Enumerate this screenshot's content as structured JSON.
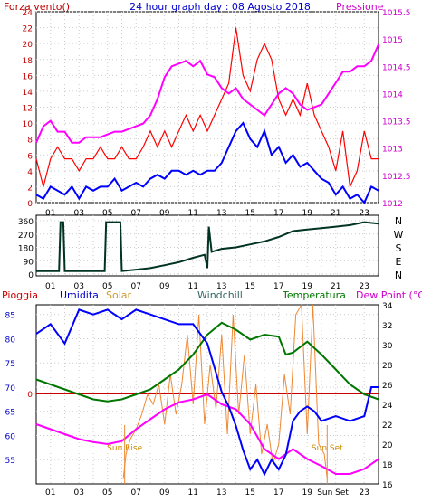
{
  "chart_data": [
    {
      "type": "line",
      "title": "24 hour graph day : 08 Agosto 2018",
      "left_axis_title": "Forza vento()",
      "right_axis_title": "Pressione",
      "left_ylim": [
        0,
        24
      ],
      "left_ticks": [
        "0",
        "2",
        "4",
        "6",
        "8",
        "10",
        "12",
        "14",
        "16",
        "18",
        "20",
        "22",
        "24"
      ],
      "right_ylim": [
        1012,
        1015.5
      ],
      "right_ticks": [
        "1012",
        "1012.5",
        "1013",
        "1013.5",
        "1014",
        "1014.5",
        "1015",
        "1015.5"
      ],
      "x_ticks": [
        "01",
        "03",
        "05",
        "07",
        "09",
        "11",
        "13",
        "15",
        "17",
        "19",
        "21",
        "23"
      ],
      "grid": true,
      "colors": {
        "gust": "#ff0000",
        "wind": "#0000ff",
        "pressure": "#ff00ff",
        "left_text": "#c00000",
        "right_text": "#cc00cc",
        "title": "#0000cc"
      },
      "series": [
        {
          "key": "gust",
          "axis": "left",
          "x": [
            0,
            0.5,
            1,
            1.5,
            2,
            2.5,
            3,
            3.5,
            4,
            4.5,
            5,
            5.5,
            6,
            6.5,
            7,
            7.5,
            8,
            8.5,
            9,
            9.5,
            10,
            10.5,
            11,
            11.5,
            12,
            12.5,
            13,
            13.5,
            14,
            14.5,
            15,
            15.5,
            16,
            16.5,
            17,
            17.5,
            18,
            18.5,
            19,
            19.5,
            20,
            20.5,
            21,
            21.5,
            22,
            22.5,
            23,
            23.5,
            24
          ],
          "values": [
            5.5,
            2,
            5.5,
            7,
            5.5,
            5.5,
            4,
            5.5,
            5.5,
            7,
            5.5,
            5.5,
            7,
            5.5,
            5.5,
            7,
            9,
            7,
            9,
            7,
            9,
            11,
            9,
            11,
            9,
            11,
            13,
            15,
            22,
            16,
            14,
            18,
            20,
            18,
            13,
            11,
            13,
            11,
            15,
            11,
            9,
            7,
            4,
            9,
            2,
            4,
            9,
            5.5,
            5.5
          ]
        },
        {
          "key": "wind",
          "axis": "left",
          "x": [
            0,
            0.5,
            1,
            1.5,
            2,
            2.5,
            3,
            3.5,
            4,
            4.5,
            5,
            5.5,
            6,
            6.5,
            7,
            7.5,
            8,
            8.5,
            9,
            9.5,
            10,
            10.5,
            11,
            11.5,
            12,
            12.5,
            13,
            13.5,
            14,
            14.5,
            15,
            15.5,
            16,
            16.5,
            17,
            17.5,
            18,
            18.5,
            19,
            19.5,
            20,
            20.5,
            21,
            21.5,
            22,
            22.5,
            23,
            23.5,
            24
          ],
          "values": [
            1,
            0.5,
            2,
            1.5,
            1,
            2,
            0.5,
            2,
            1.5,
            2,
            2,
            3,
            1.5,
            2,
            2.5,
            2,
            3,
            3.5,
            3,
            4,
            4,
            3.5,
            4,
            3.5,
            4,
            4,
            5,
            7,
            9,
            10,
            8,
            7,
            9,
            6,
            7,
            5,
            6,
            4.5,
            5,
            4,
            3,
            2.5,
            1,
            2,
            0.5,
            1,
            0,
            2,
            1.5
          ]
        },
        {
          "key": "pressure",
          "axis": "right",
          "x": [
            0,
            0.5,
            1,
            1.5,
            2,
            2.5,
            3,
            3.5,
            4,
            4.5,
            5,
            5.5,
            6,
            6.5,
            7,
            7.5,
            8,
            8.5,
            9,
            9.5,
            10,
            10.5,
            11,
            11.5,
            12,
            12.5,
            13,
            13.5,
            14,
            14.5,
            15,
            15.5,
            16,
            16.5,
            17,
            17.5,
            18,
            18.5,
            19,
            19.5,
            20,
            20.5,
            21,
            21.5,
            22,
            22.5,
            23,
            23.5,
            24
          ],
          "values": [
            1013.1,
            1013.4,
            1013.5,
            1013.3,
            1013.3,
            1013.1,
            1013.1,
            1013.2,
            1013.2,
            1013.2,
            1013.25,
            1013.3,
            1013.3,
            1013.35,
            1013.4,
            1013.45,
            1013.6,
            1013.9,
            1014.3,
            1014.5,
            1014.55,
            1014.6,
            1014.5,
            1014.6,
            1014.35,
            1014.3,
            1014.1,
            1014.0,
            1014.1,
            1013.9,
            1013.8,
            1013.7,
            1013.6,
            1013.8,
            1014.0,
            1014.1,
            1014.0,
            1013.8,
            1013.7,
            1013.75,
            1013.8,
            1014.0,
            1014.2,
            1014.4,
            1014.4,
            1014.5,
            1014.5,
            1014.6,
            1014.9
          ]
        }
      ]
    },
    {
      "type": "line",
      "title": "",
      "ylim": [
        0,
        360
      ],
      "y_ticks": [
        "0",
        "90",
        "180",
        "270",
        "360"
      ],
      "compass_labels": [
        "N",
        "W",
        "S",
        "E",
        "N"
      ],
      "x_ticks": [
        "01",
        "03",
        "05",
        "07",
        "09",
        "11",
        "13",
        "15",
        "17",
        "19",
        "21",
        "23"
      ],
      "grid": true,
      "colors": {
        "direction": "#003322"
      },
      "series": [
        {
          "key": "direction",
          "x": [
            0,
            1.6,
            1.7,
            1.9,
            2.0,
            4.8,
            4.9,
            5.9,
            6.0,
            7.0,
            8.0,
            9.0,
            10.0,
            11.0,
            11.8,
            12.0,
            12.1,
            12.3,
            13.0,
            14.0,
            15.0,
            16.0,
            17.0,
            18.0,
            19.0,
            20.0,
            21.0,
            22.0,
            23.0,
            24.0
          ],
          "values": [
            20,
            20,
            350,
            350,
            20,
            20,
            350,
            350,
            20,
            30,
            40,
            60,
            80,
            110,
            130,
            40,
            320,
            150,
            170,
            180,
            200,
            220,
            250,
            290,
            300,
            310,
            320,
            330,
            350,
            340
          ]
        }
      ]
    },
    {
      "type": "line",
      "title": "",
      "legend": [
        "Pioggia",
        "Umidita",
        "Solar",
        "Windchill",
        "Temperatura",
        "Dew Point (°C)"
      ],
      "left_ylim": [
        50,
        87
      ],
      "left_ticks": [
        "55",
        "60",
        "65",
        "70",
        "75",
        "80",
        "85"
      ],
      "right_ylim": [
        16,
        34
      ],
      "right_ticks": [
        "16",
        "18",
        "20",
        "22",
        "24",
        "26",
        "28",
        "30",
        "32",
        "34"
      ],
      "rain_value_label": "0",
      "x_ticks": [
        "01",
        "03",
        "05",
        "07",
        "09",
        "11",
        "13",
        "15",
        "17",
        "19",
        "21",
        "23"
      ],
      "annotations": [
        {
          "text": "Sun Rise",
          "x": 6.2
        },
        {
          "text": "Sun Set",
          "x": 20.4
        }
      ],
      "x_extra_label": "Sun Set",
      "grid": true,
      "colors": {
        "rain": "#cc0000",
        "humidity": "#0000ff",
        "solar": "#ee8833",
        "windchill": "#336666",
        "temperature": "#007700",
        "dewpoint": "#ff00ff"
      },
      "series": [
        {
          "key": "humidity",
          "axis": "left",
          "x": [
            0,
            1,
            2,
            3,
            4,
            5,
            6,
            7,
            8,
            9,
            10,
            11,
            12,
            12.5,
            13,
            13.5,
            14,
            14.5,
            15,
            15.5,
            16,
            16.5,
            17,
            17.5,
            18,
            18.5,
            19,
            19.5,
            20,
            21,
            22,
            23,
            23.5,
            24
          ],
          "values": [
            81,
            83,
            79,
            86,
            85,
            86,
            84,
            86,
            85,
            84,
            83,
            83,
            79,
            74,
            69,
            66,
            62,
            57,
            53,
            55,
            52,
            55,
            53,
            56,
            63,
            65,
            66,
            65,
            63,
            64,
            63,
            64,
            70,
            70
          ]
        },
        {
          "key": "temperature",
          "axis": "right",
          "x": [
            0,
            1,
            2,
            3,
            4,
            5,
            6,
            7,
            8,
            9,
            10,
            11,
            12,
            13,
            14,
            15,
            16,
            17,
            17.5,
            18,
            19,
            20,
            21,
            22,
            23,
            24
          ],
          "values": [
            26.5,
            26,
            25.5,
            25,
            24.5,
            24.3,
            24.5,
            25,
            25.5,
            26.5,
            27.5,
            29,
            31,
            32.2,
            31.5,
            30.5,
            31,
            30.8,
            29,
            29.2,
            30.3,
            29,
            27.5,
            26,
            25,
            24.5
          ]
        },
        {
          "key": "dewpoint",
          "axis": "right",
          "x": [
            0,
            1,
            2,
            3,
            4,
            5,
            6,
            7,
            8,
            9,
            10,
            11,
            12,
            13,
            14,
            15,
            16,
            17,
            18,
            19,
            20,
            21,
            22,
            23,
            24
          ],
          "values": [
            22,
            21.5,
            21,
            20.5,
            20.2,
            20,
            20.3,
            21.5,
            22.5,
            23.5,
            24.2,
            24.5,
            25,
            24,
            23.5,
            22,
            19.5,
            18.5,
            19.5,
            18.5,
            17.8,
            17,
            17,
            17.5,
            18.5
          ]
        },
        {
          "key": "solar",
          "axis": "right",
          "x": [
            6.1,
            6.3,
            6.6,
            7,
            7.4,
            7.8,
            8.2,
            8.6,
            9,
            9.4,
            9.8,
            10.2,
            10.6,
            11,
            11.4,
            11.8,
            12.2,
            12.6,
            13,
            13.4,
            13.8,
            14.2,
            14.6,
            15,
            15.4,
            15.8,
            16.2,
            16.6,
            17,
            17.4,
            17.8,
            18.2,
            18.6,
            19,
            19.4,
            19.8,
            20.2,
            20.4
          ],
          "values": [
            16.5,
            19,
            20.5,
            21.5,
            23,
            25,
            24,
            26,
            22,
            27,
            23,
            26,
            31,
            24,
            33,
            22,
            28,
            23.5,
            31,
            21,
            33,
            23,
            29,
            21,
            26,
            19,
            22,
            18,
            20,
            27,
            23,
            33,
            34,
            21,
            34,
            20,
            19,
            16.5
          ]
        }
      ]
    }
  ]
}
